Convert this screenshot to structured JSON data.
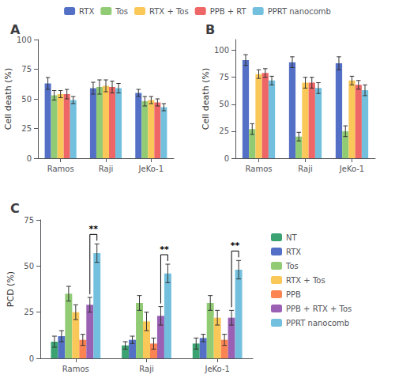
{
  "chart_data": [
    {
      "type": "bar",
      "title": "A",
      "ylabel": "Cell death (%)",
      "categories": [
        "Ramos",
        "Raji",
        "JeKo-1"
      ],
      "series": [
        {
          "name": "RTX",
          "values": [
            63,
            59,
            55
          ],
          "errors": [
            5,
            5,
            3
          ]
        },
        {
          "name": "Tos",
          "values": [
            53,
            60,
            48
          ],
          "errors": [
            4,
            6,
            4
          ]
        },
        {
          "name": "RTX + Tos",
          "values": [
            54,
            61,
            49
          ],
          "errors": [
            3,
            5,
            3
          ]
        },
        {
          "name": "PPB + RT",
          "values": [
            54,
            60,
            47
          ],
          "errors": [
            4,
            5,
            3
          ]
        },
        {
          "name": "PPRT nanocomb",
          "values": [
            49,
            59,
            43
          ],
          "errors": [
            3,
            4,
            3
          ]
        }
      ],
      "ylim": [
        0,
        100
      ],
      "yticks": [
        0,
        25,
        50,
        75,
        100
      ],
      "grid": false,
      "legend": "top"
    },
    {
      "type": "bar",
      "title": "B",
      "ylabel": "Cell death (%)",
      "categories": [
        "Ramos",
        "Raji",
        "JeKo-1"
      ],
      "series": [
        {
          "name": "RTX",
          "values": [
            91,
            89,
            88
          ],
          "errors": [
            5,
            5,
            6
          ]
        },
        {
          "name": "Tos",
          "values": [
            27,
            20,
            25
          ],
          "errors": [
            5,
            4,
            5
          ]
        },
        {
          "name": "RTX + Tos",
          "values": [
            78,
            70,
            72
          ],
          "errors": [
            4,
            5,
            4
          ]
        },
        {
          "name": "PPB + RT",
          "values": [
            79,
            70,
            68
          ],
          "errors": [
            4,
            5,
            4
          ]
        },
        {
          "name": "PPRT nanocomb",
          "values": [
            72,
            65,
            63
          ],
          "errors": [
            4,
            5,
            5
          ]
        }
      ],
      "ylim": [
        0,
        110
      ],
      "yticks": [
        0,
        25,
        50,
        75,
        100
      ],
      "grid": false
    },
    {
      "type": "bar",
      "title": "C",
      "ylabel": "PCD (%)",
      "categories": [
        "Ramos",
        "Raji",
        "JeKo-1"
      ],
      "series": [
        {
          "name": "NT",
          "values": [
            9,
            7,
            8
          ],
          "errors": [
            3,
            2,
            3
          ]
        },
        {
          "name": "RTX",
          "values": [
            12,
            10,
            11
          ],
          "errors": [
            3,
            2,
            2
          ]
        },
        {
          "name": "Tos",
          "values": [
            35,
            30,
            30
          ],
          "errors": [
            4,
            4,
            4
          ]
        },
        {
          "name": "RTX + Tos",
          "values": [
            25,
            20,
            22
          ],
          "errors": [
            4,
            5,
            4
          ]
        },
        {
          "name": "PPB",
          "values": [
            10,
            8,
            10
          ],
          "errors": [
            3,
            3,
            3
          ]
        },
        {
          "name": "PPB + RTX + Tos",
          "values": [
            29,
            23,
            22
          ],
          "errors": [
            4,
            5,
            4
          ]
        },
        {
          "name": "PPRT nanocomb",
          "values": [
            57,
            46,
            48
          ],
          "errors": [
            5,
            5,
            5
          ]
        }
      ],
      "ylim": [
        0,
        75
      ],
      "yticks": [
        0,
        25,
        50,
        75
      ],
      "grid": false,
      "legend": "right",
      "annotations": [
        {
          "text": "**",
          "category": "Ramos",
          "from": "PPB + RTX + Tos",
          "to": "PPRT nanocomb"
        },
        {
          "text": "**",
          "category": "Raji",
          "from": "PPB + RTX + Tos",
          "to": "PPRT nanocomb"
        },
        {
          "text": "**",
          "category": "JeKo-1",
          "from": "PPB + RTX + Tos",
          "to": "PPRT nanocomb"
        }
      ]
    }
  ]
}
